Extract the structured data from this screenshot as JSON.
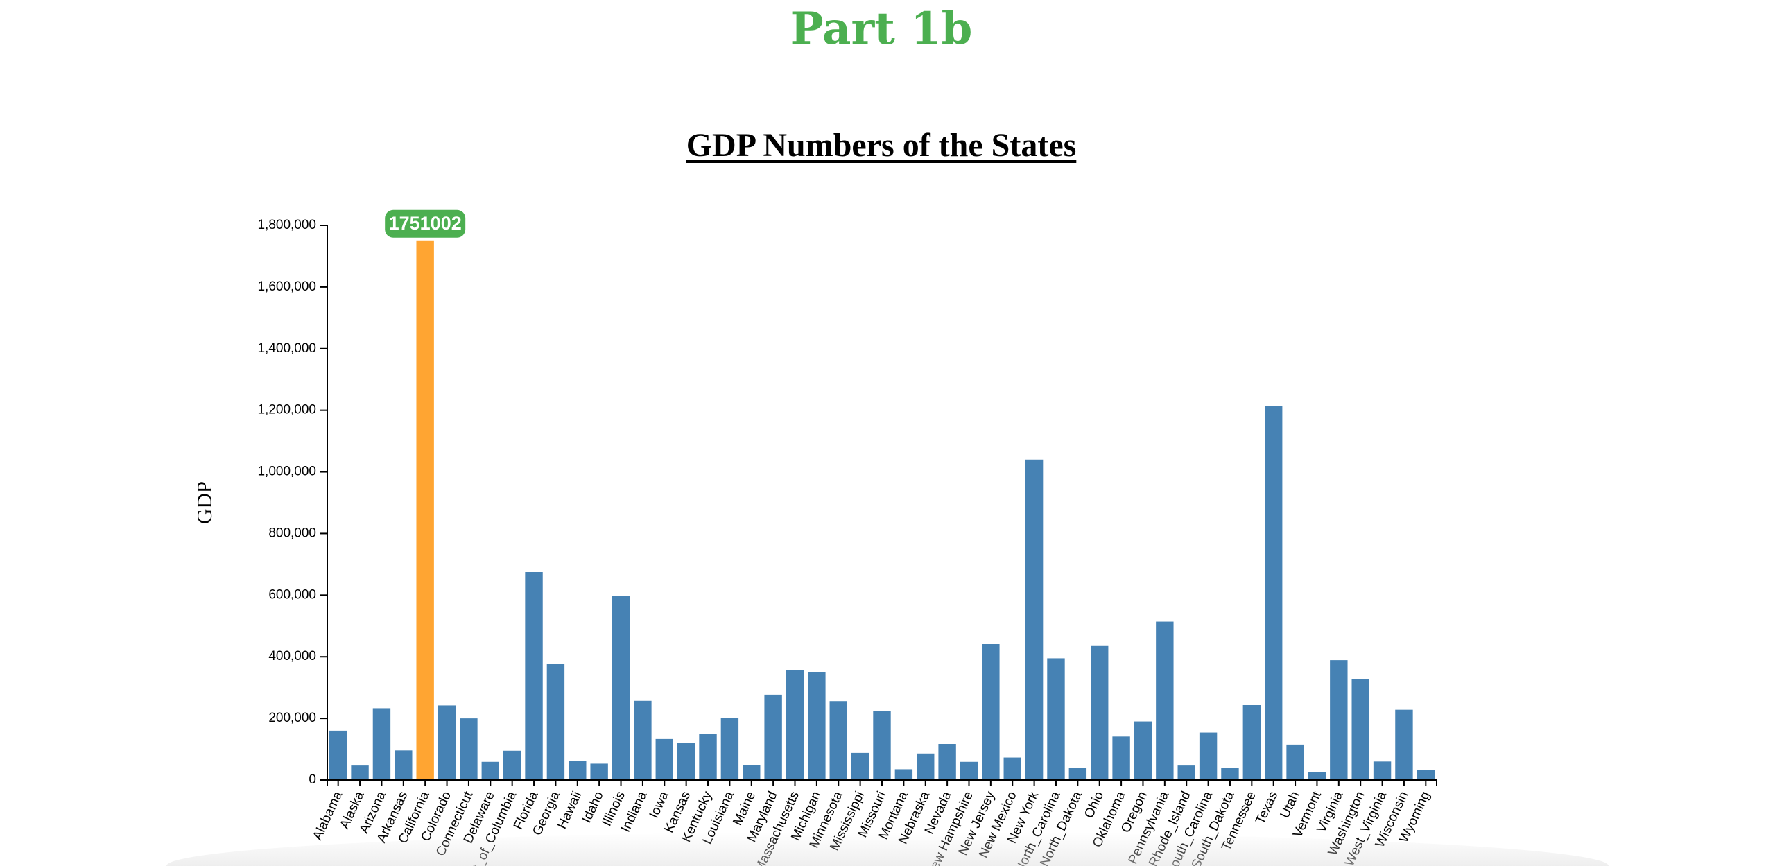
{
  "page": {
    "heading": "Part 1b"
  },
  "chart_data": {
    "type": "bar",
    "title": "GDP Numbers of the States",
    "xlabel": "",
    "ylabel": "GDP",
    "ylim": [
      0,
      1800000
    ],
    "yticks": [
      0,
      200000,
      400000,
      600000,
      800000,
      1000000,
      1200000,
      1400000,
      1600000,
      1800000
    ],
    "ytick_labels": [
      "0",
      "200,000",
      "400,000",
      "600,000",
      "800,000",
      "1,000,000",
      "1,200,000",
      "1,400,000",
      "1,600,000",
      "1,800,000"
    ],
    "grid": false,
    "categories": [
      "Alabama",
      "Alaska",
      "Arizona",
      "Arkansas",
      "California",
      "Colorado",
      "Connecticut",
      "Delaware",
      "District_of_Columbia",
      "Florida",
      "Georgia",
      "Hawaii",
      "Idaho",
      "Illinois",
      "Indiana",
      "Iowa",
      "Kansas",
      "Kentucky",
      "Louisiana",
      "Maine",
      "Maryland",
      "Massachusetts",
      "Michigan",
      "Minnesota",
      "Mississippi",
      "Missouri",
      "Montana",
      "Nebraska",
      "Nevada",
      "New Hampshire",
      "New Jersey",
      "New Mexico",
      "New York",
      "North_Carolina",
      "North_Dakota",
      "Ohio",
      "Oklahoma",
      "Oregon",
      "Pennsylvania",
      "Rhode_Island",
      "South_Carolina",
      "South_Dakota",
      "Tennessee",
      "Texas",
      "Utah",
      "Vermont",
      "Virginia",
      "Washington",
      "West_Virginia",
      "Wisconsin",
      "Wyoming"
    ],
    "values": [
      160000,
      47000,
      233000,
      96000,
      1751002,
      242000,
      200000,
      59000,
      95000,
      675000,
      377000,
      63000,
      53000,
      597000,
      257000,
      133000,
      121000,
      150000,
      201000,
      49000,
      277000,
      356000,
      351000,
      256000,
      88000,
      224000,
      35000,
      86000,
      117000,
      59000,
      441000,
      73000,
      1040000,
      395000,
      40000,
      437000,
      141000,
      190000,
      514000,
      47000,
      154000,
      39000,
      243000,
      1213000,
      115000,
      26000,
      389000,
      328000,
      60000,
      228000,
      32000
    ],
    "highlighted_index": 4,
    "tooltip_label": "1751002",
    "colors": {
      "bar": "#4682b4",
      "highlight": "#ffa532",
      "tooltip_bg": "#4caf50",
      "heading": "#4caf50",
      "axis": "#000000"
    }
  }
}
